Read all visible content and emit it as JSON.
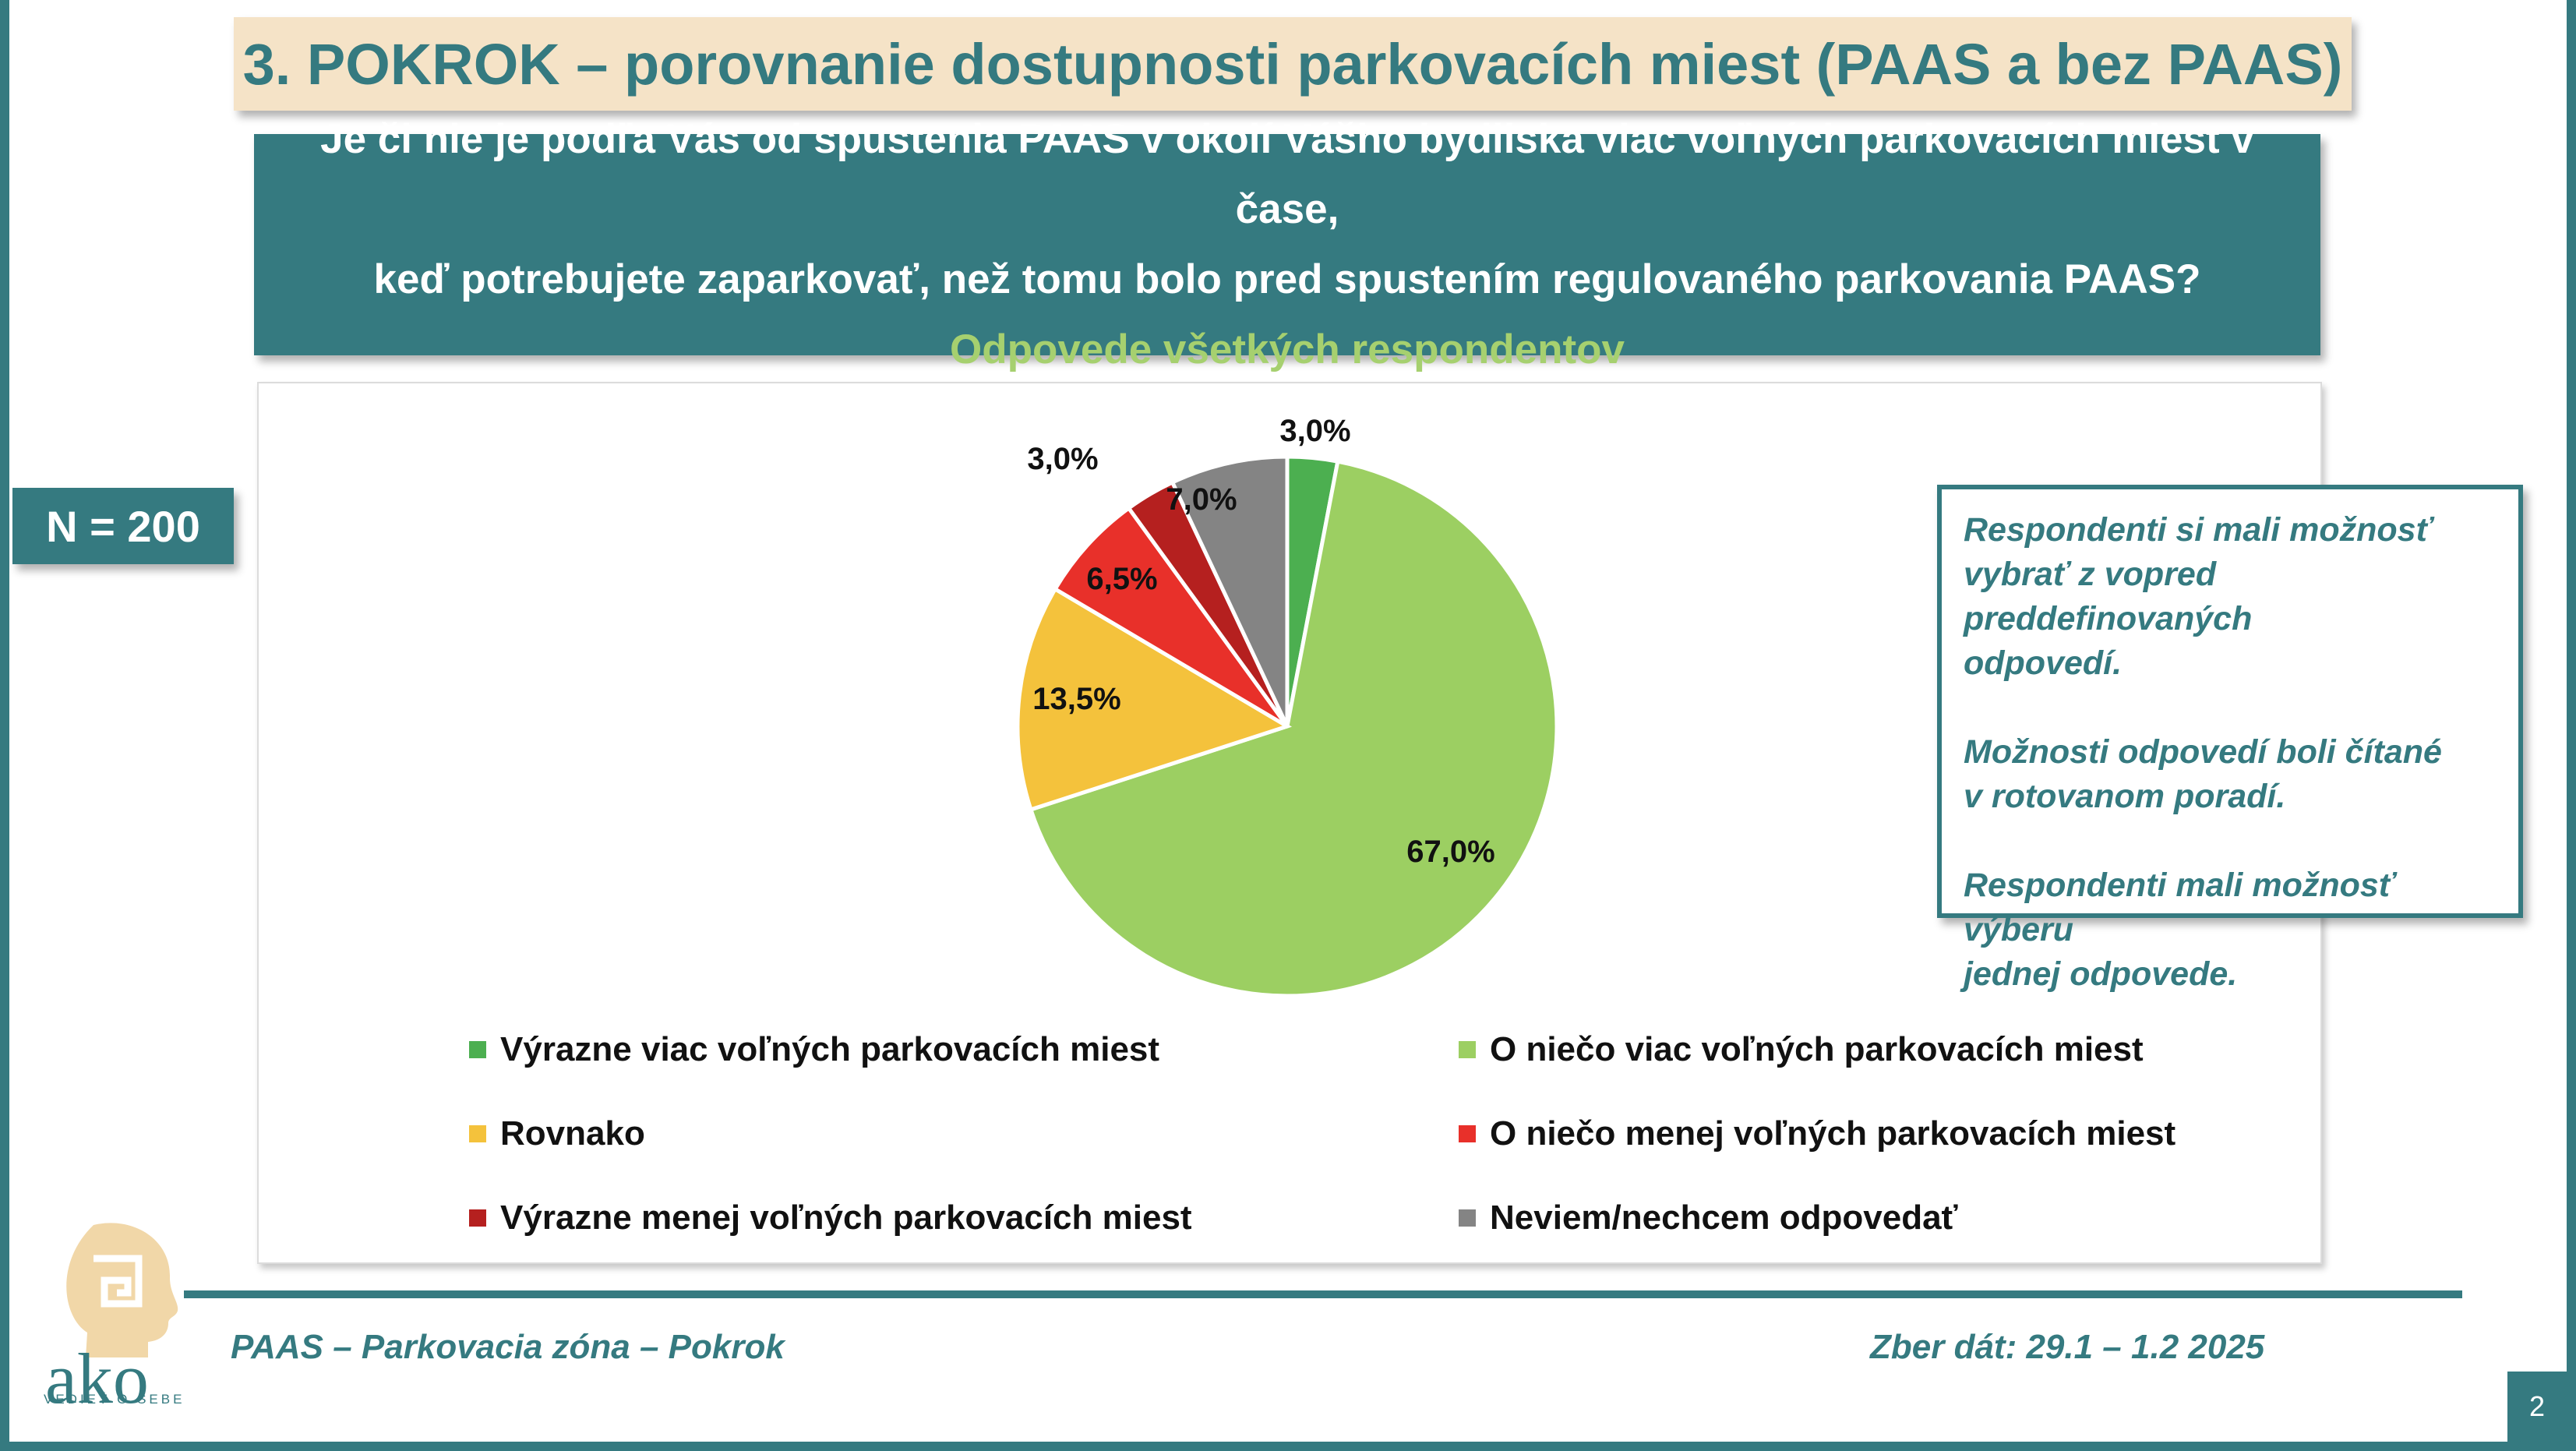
{
  "slide": {
    "title": "3. POKROK – porovnanie dostupnosti parkovacích miest (PAAS a bez PAAS)",
    "question_line1": "Je či nie je podľa Vás od spustenia PAAS v okolí Vášho bydliska viac  voľných parkovacích miest v čase,",
    "question_line2": "keď potrebujete zaparkovať, než tomu bolo pred spustením regulovaného parkovania PAAS?",
    "question_sub": "Odpovede všetkých respondentov",
    "sample": "N = 200",
    "notes": [
      [
        "Respondenti si mali možnosť",
        "vybrať z vopred preddefinovaných",
        "odpovedí."
      ],
      [
        "Možnosti odpovedí boli čítané",
        "v rotovanom poradí."
      ],
      [
        "Respondenti mali možnosť výberu",
        "jednej odpovede."
      ]
    ],
    "footer_left": "PAAS – Parkovacia zóna – Pokrok",
    "footer_right": "Zber dát: 29.1 – 1.2 2025",
    "page_number": "2",
    "logo_word": "ako",
    "logo_tagline": "VEDIEŤ O SEBE"
  },
  "colors": {
    "teal": "#357a80",
    "beige": "#f5e3c7",
    "sub_green": "#a6d06f"
  },
  "chart_data": {
    "type": "pie",
    "title": "",
    "start_angle_deg": 0,
    "direction": "clockwise",
    "slices": [
      {
        "label": "Výrazne viac voľných parkovacích miest",
        "value": 3.0,
        "display": "3,0%",
        "color": "#4caf50"
      },
      {
        "label": "O niečo viac voľných parkovacích miest",
        "value": 67.0,
        "display": "67,0%",
        "color": "#9ccf62"
      },
      {
        "label": "Rovnako",
        "value": 13.5,
        "display": "13,5%",
        "color": "#f4c23c"
      },
      {
        "label": "O niečo menej voľných parkovacích miest",
        "value": 6.5,
        "display": "6,5%",
        "color": "#e8302a"
      },
      {
        "label": "Výrazne menej voľných parkovacích miest",
        "value": 3.0,
        "display": "3,0%",
        "color": "#b5201f"
      },
      {
        "label": "Neviem/nechcem odpovedať",
        "value": 7.0,
        "display": "7,0%",
        "color": "#848484"
      }
    ],
    "legend_position": "bottom",
    "legend_order": [
      0,
      1,
      2,
      3,
      4,
      5
    ]
  }
}
